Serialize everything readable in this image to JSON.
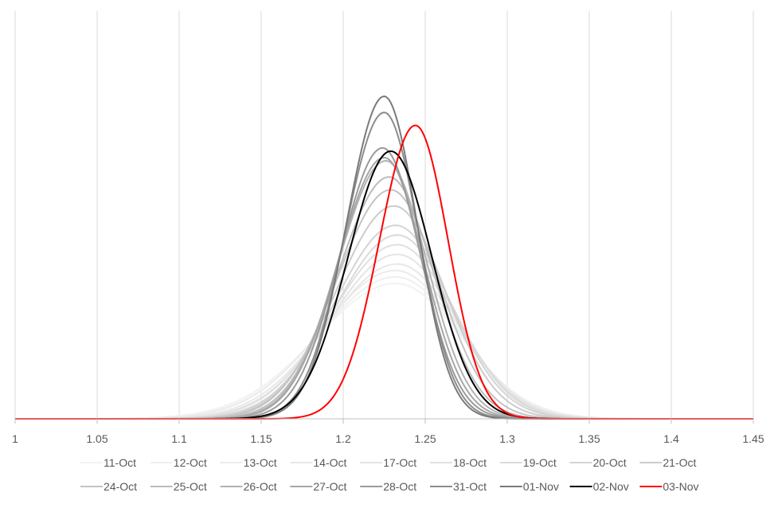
{
  "chart_data": {
    "type": "line",
    "title": "",
    "xlabel": "",
    "ylabel": "",
    "xlim": [
      1,
      1.45
    ],
    "x_ticks": [
      "1",
      "1.05",
      "1.1",
      "1.15",
      "1.2",
      "1.25",
      "1.3",
      "1.35",
      "1.4",
      "1.45"
    ],
    "y_axis_visible": false,
    "grid": "vertical",
    "legend_position": "bottom",
    "series": [
      {
        "name": "11-Oct",
        "color": "#f2f2f2",
        "peak_x": 1.232,
        "peak_y": 0.42,
        "sigma_left": 0.048,
        "sigma_right": 0.04
      },
      {
        "name": "12-Oct",
        "color": "#efefef",
        "peak_x": 1.232,
        "peak_y": 0.44,
        "sigma_left": 0.046,
        "sigma_right": 0.039
      },
      {
        "name": "13-Oct",
        "color": "#ececec",
        "peak_x": 1.232,
        "peak_y": 0.46,
        "sigma_left": 0.045,
        "sigma_right": 0.038
      },
      {
        "name": "14-Oct",
        "color": "#e8e8e8",
        "peak_x": 1.233,
        "peak_y": 0.48,
        "sigma_left": 0.043,
        "sigma_right": 0.037
      },
      {
        "name": "17-Oct",
        "color": "#e4e4e4",
        "peak_x": 1.233,
        "peak_y": 0.51,
        "sigma_left": 0.041,
        "sigma_right": 0.036
      },
      {
        "name": "18-Oct",
        "color": "#e0e0e0",
        "peak_x": 1.233,
        "peak_y": 0.54,
        "sigma_left": 0.04,
        "sigma_right": 0.035
      },
      {
        "name": "19-Oct",
        "color": "#dadada",
        "peak_x": 1.233,
        "peak_y": 0.57,
        "sigma_left": 0.038,
        "sigma_right": 0.034
      },
      {
        "name": "20-Oct",
        "color": "#d4d4d4",
        "peak_x": 1.232,
        "peak_y": 0.6,
        "sigma_left": 0.037,
        "sigma_right": 0.033
      },
      {
        "name": "21-Oct",
        "color": "#cccccc",
        "peak_x": 1.231,
        "peak_y": 0.66,
        "sigma_left": 0.035,
        "sigma_right": 0.031
      },
      {
        "name": "24-Oct",
        "color": "#c4c4c4",
        "peak_x": 1.229,
        "peak_y": 0.71,
        "sigma_left": 0.033,
        "sigma_right": 0.029
      },
      {
        "name": "25-Oct",
        "color": "#bcbcbc",
        "peak_x": 1.228,
        "peak_y": 0.75,
        "sigma_left": 0.031,
        "sigma_right": 0.027
      },
      {
        "name": "26-Oct",
        "color": "#b2b2b2",
        "peak_x": 1.226,
        "peak_y": 0.8,
        "sigma_left": 0.029,
        "sigma_right": 0.025
      },
      {
        "name": "27-Oct",
        "color": "#a6a6a6",
        "peak_x": 1.225,
        "peak_y": 0.81,
        "sigma_left": 0.028,
        "sigma_right": 0.024
      },
      {
        "name": "28-Oct",
        "color": "#9a9a9a",
        "peak_x": 1.224,
        "peak_y": 0.84,
        "sigma_left": 0.026,
        "sigma_right": 0.023
      },
      {
        "name": "31-Oct",
        "color": "#8c8c8c",
        "peak_x": 1.225,
        "peak_y": 0.95,
        "sigma_left": 0.024,
        "sigma_right": 0.021
      },
      {
        "name": "01-Nov",
        "color": "#7a7a7a",
        "peak_x": 1.225,
        "peak_y": 1.0,
        "sigma_left": 0.023,
        "sigma_right": 0.02
      },
      {
        "name": "02-Nov",
        "color": "#000000",
        "peak_x": 1.229,
        "peak_y": 0.83,
        "sigma_left": 0.026,
        "sigma_right": 0.025
      },
      {
        "name": "03-Nov",
        "color": "#ff0000",
        "peak_x": 1.244,
        "peak_y": 0.91,
        "sigma_left": 0.022,
        "sigma_right": 0.02
      }
    ]
  }
}
